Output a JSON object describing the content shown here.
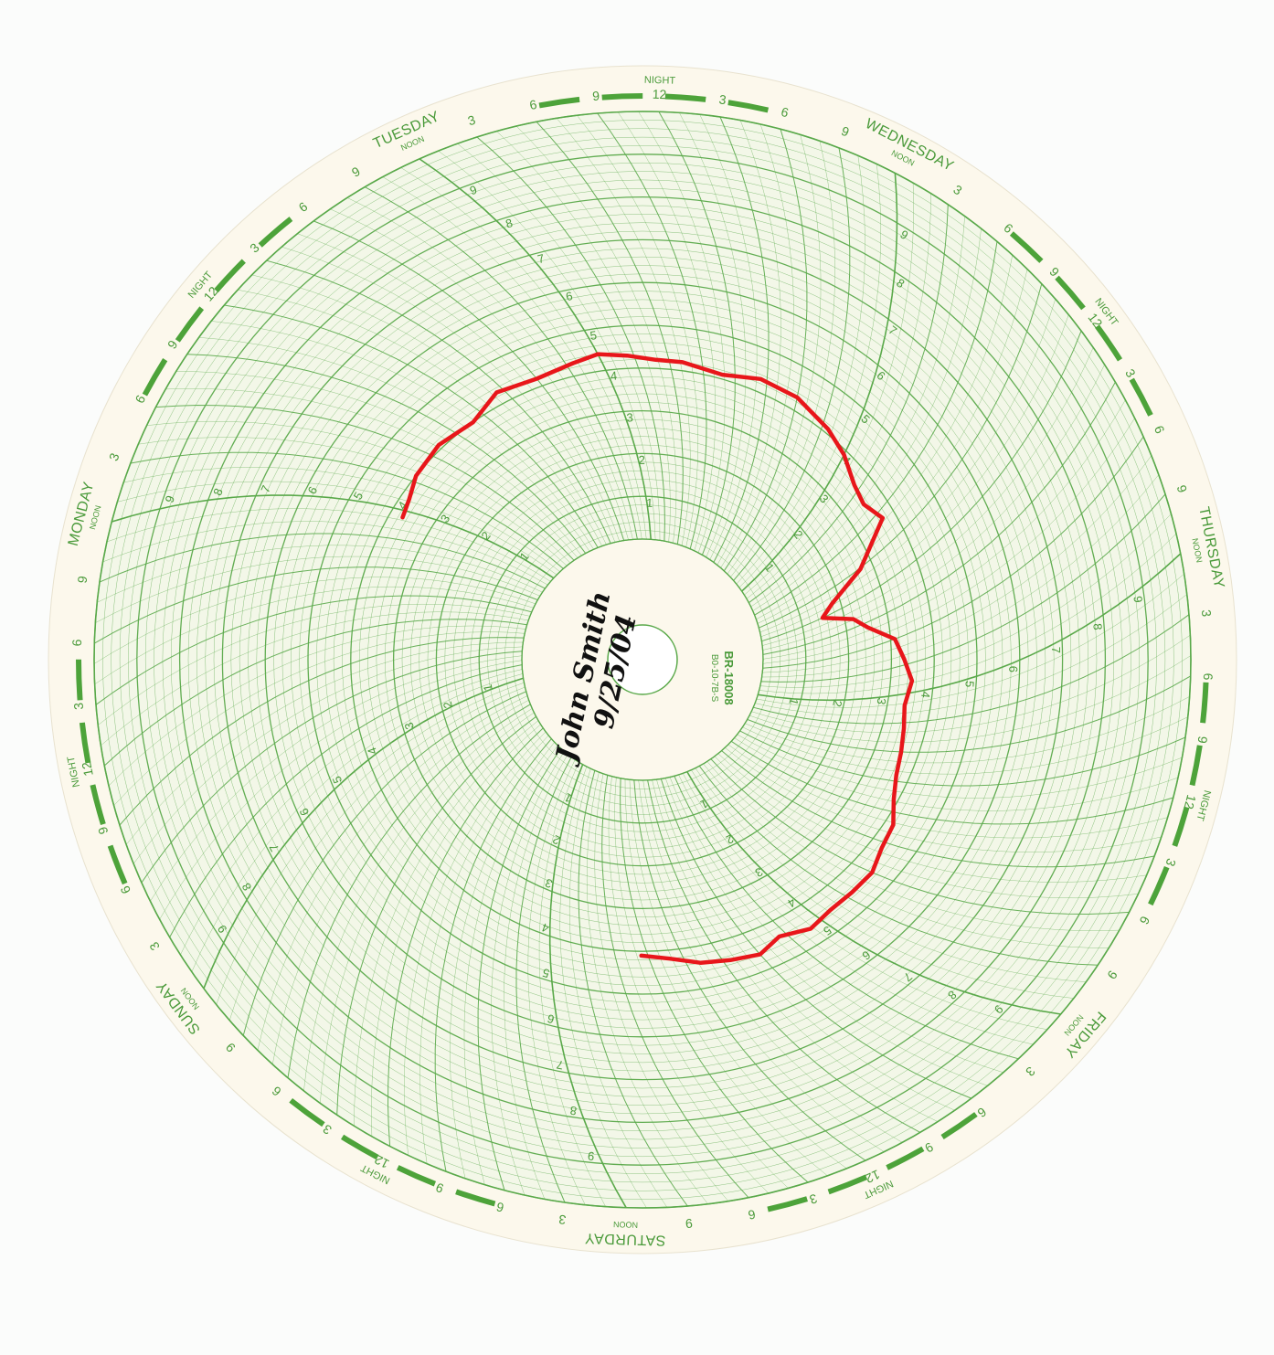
{
  "chart_data": {
    "type": "line",
    "coordinate_system": "circular (polar) 7-day recorder chart",
    "days": [
      "TUESDAY",
      "WEDNESDAY",
      "THURSDAY",
      "FRIDAY",
      "SATURDAY",
      "SUNDAY",
      "MONDAY"
    ],
    "hour_ticks": [
      "NOON",
      "3",
      "6",
      "9",
      "NIGHT 12",
      "3",
      "6",
      "9"
    ],
    "noon_label": "NOON",
    "night_label": "NIGHT",
    "night_hour_label": "12",
    "radial_scale": [
      "1",
      "2",
      "3",
      "4",
      "5",
      "6",
      "7",
      "8",
      "9"
    ],
    "radial_range": [
      0,
      10
    ],
    "model": "BR-18008",
    "model_sub": "B0-10-7B-S",
    "handwritten_name": "John Smith",
    "handwritten_date": "9/25/04",
    "series": [
      {
        "color": "#e8161a",
        "comment": "recorded trace: pairs of [day index + fraction of day from day's NOON going clockwise, radial value]",
        "points": [
          [
            5.97,
            3.7
          ],
          [
            6.05,
            3.8
          ],
          [
            6.15,
            4.0
          ],
          [
            6.3,
            4.1
          ],
          [
            6.45,
            4.0
          ],
          [
            6.6,
            4.3
          ],
          [
            6.75,
            4.2
          ],
          [
            6.9,
            4.3
          ],
          [
            0.0,
            4.4
          ],
          [
            0.1,
            4.3
          ],
          [
            0.2,
            4.2
          ],
          [
            0.3,
            4.2
          ],
          [
            0.45,
            4.1
          ],
          [
            0.6,
            4.3
          ],
          [
            0.75,
            4.3
          ],
          [
            0.9,
            4.1
          ],
          [
            1.0,
            3.9
          ],
          [
            1.1,
            3.6
          ],
          [
            1.18,
            3.5
          ],
          [
            1.28,
            3.7
          ],
          [
            1.38,
            2.7
          ],
          [
            1.45,
            1.8
          ],
          [
            1.5,
            1.5
          ],
          [
            1.58,
            2.2
          ],
          [
            1.65,
            2.5
          ],
          [
            1.75,
            3.1
          ],
          [
            1.85,
            3.3
          ],
          [
            1.95,
            3.5
          ],
          [
            2.05,
            3.4
          ],
          [
            2.15,
            3.5
          ],
          [
            2.25,
            3.6
          ],
          [
            2.35,
            3.7
          ],
          [
            2.45,
            3.9
          ],
          [
            2.55,
            4.2
          ],
          [
            2.65,
            4.3
          ],
          [
            2.75,
            4.5
          ],
          [
            2.85,
            4.5
          ],
          [
            2.95,
            4.5
          ],
          [
            3.05,
            4.6
          ],
          [
            3.15,
            4.4
          ],
          [
            3.25,
            4.6
          ],
          [
            3.35,
            4.5
          ],
          [
            3.45,
            4.4
          ],
          [
            3.55,
            4.2
          ],
          [
            3.65,
            4.1
          ]
        ]
      }
    ]
  },
  "colors": {
    "paper": "#fcf8ec",
    "grid": "#5aa94a",
    "trace": "#e8161a",
    "ink": "#111111"
  }
}
